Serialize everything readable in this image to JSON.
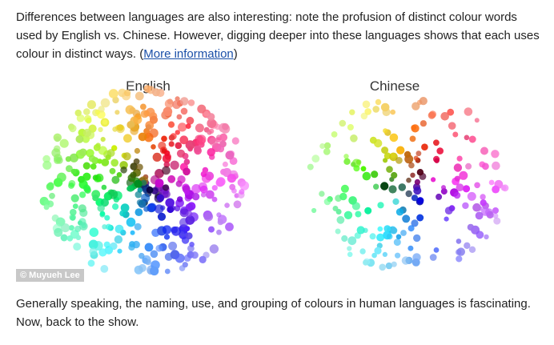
{
  "paragraph_1": {
    "text_before": "Differences between languages are also interesting: note the profusion of distinct colour words used by English vs. Chinese. However, digging deeper into these languages shows that each uses colour in distinct ways. (",
    "link_text": "More information",
    "text_after": ")"
  },
  "figure": {
    "left_title": "English",
    "right_title": "Chinese",
    "credit": "© Muyueh Lee"
  },
  "paragraph_2": {
    "text": "Generally speaking, the naming, use, and grouping of colours in human languages is fascinating. Now, back to the show."
  }
}
